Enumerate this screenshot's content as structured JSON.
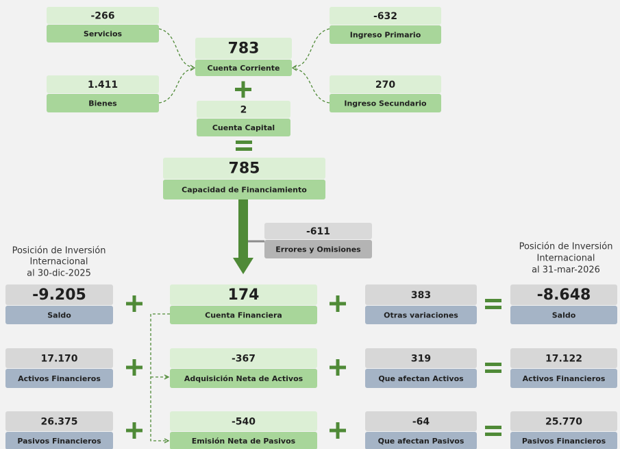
{
  "nodes": [
    {
      "value": "-266",
      "label": "Servicios"
    },
    {
      "value": "1.411",
      "label": "Bienes"
    },
    {
      "value": "-632",
      "label": "Ingreso Primario"
    },
    {
      "value": "270",
      "label": "Ingreso Secundario"
    },
    {
      "value": "783",
      "label": "Cuenta Corriente"
    },
    {
      "value": "2",
      "label": "Cuenta Capital"
    },
    {
      "value": "785",
      "label": "Capacidad de Financiamiento"
    },
    {
      "value": "-611",
      "label": "Errores y Omisiones"
    },
    {
      "value": "-9.205",
      "label": "Saldo"
    },
    {
      "value": "174",
      "label": "Cuenta Financiera"
    },
    {
      "value": "383",
      "label": "Otras variaciones"
    },
    {
      "value": "-8.648",
      "label": "Saldo"
    },
    {
      "value": "17.170",
      "label": "Activos Financieros"
    },
    {
      "value": "-367",
      "label": "Adquisición Neta de Activos"
    },
    {
      "value": "319",
      "label": "Que afectan Activos"
    },
    {
      "value": "17.122",
      "label": "Activos Financieros"
    },
    {
      "value": "26.375",
      "label": "Pasivos Financieros"
    },
    {
      "value": "-540",
      "label": "Emisión Neta de Pasivos"
    },
    {
      "value": "-64",
      "label": "Que afectan Pasivos"
    },
    {
      "value": "25.770",
      "label": "Pasivos Financieros"
    }
  ],
  "left_header": [
    "Posición de Inversión",
    "Internacional",
    "al 30-dic-2025"
  ],
  "right_header": [
    "Posición de Inversión",
    "Internacional",
    "al 31-mar-2026"
  ]
}
